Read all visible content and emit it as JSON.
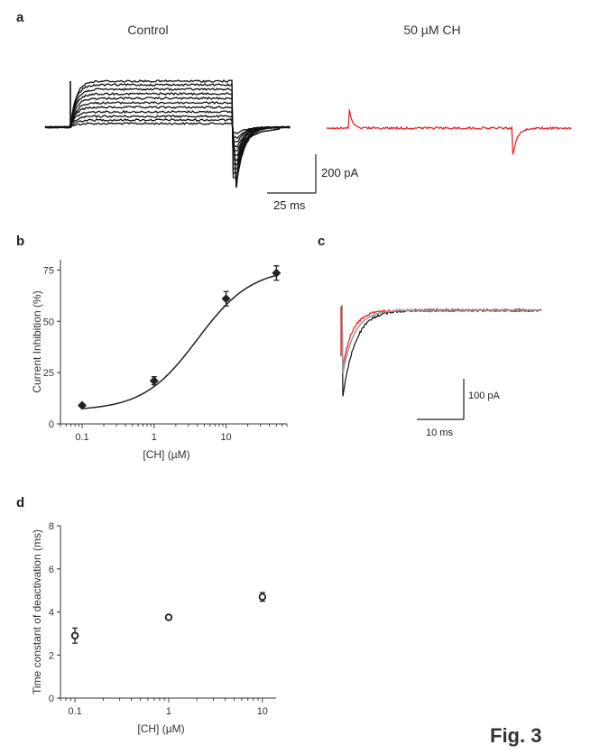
{
  "panels": {
    "a": {
      "label": "a",
      "control_title": "Control",
      "ch_title": "50 µM CH",
      "control_color": "#111111",
      "ch_color": "#e8262d",
      "scale_current": "200 pA",
      "scale_time": "25 ms"
    },
    "b": {
      "label": "b"
    },
    "c": {
      "label": "c",
      "scale_current": "100 pA",
      "scale_time": "10 ms",
      "colors": {
        "control": "#111111",
        "ch": "#e8262d",
        "fit": "#9a9a9a"
      }
    },
    "d": {
      "label": "d"
    }
  },
  "figure_label": "Fig. 3",
  "chart_data": [
    {
      "id": "b",
      "type": "scatter",
      "xscale": "log",
      "xlabel": "[CH] (µM)",
      "ylabel": "Current Inhibition (%)",
      "xlim": [
        0.05,
        70
      ],
      "ylim": [
        0,
        80
      ],
      "xticks": [
        0.1,
        1,
        10
      ],
      "xtick_labels": [
        "0.1",
        "1",
        "10"
      ],
      "yticks": [
        0,
        25,
        50,
        75
      ],
      "ytick_labels": [
        "0",
        "25",
        "50",
        "75"
      ],
      "marker": "filled-diamond",
      "x": [
        0.1,
        1,
        10,
        50
      ],
      "y": [
        9,
        21,
        61,
        73.5
      ],
      "yerr": [
        0,
        2,
        3.5,
        3.5
      ],
      "fit": {
        "model": "hill",
        "bottom": 6.5,
        "top": 76,
        "ic50": 4,
        "hill_n": 1.15
      }
    },
    {
      "id": "d",
      "type": "scatter",
      "xscale": "log",
      "xlabel": "[CH] (µM)",
      "ylabel": "Time constant of deactivation (ms)",
      "xlim": [
        0.07,
        14
      ],
      "ylim": [
        0,
        8
      ],
      "xticks": [
        0.1,
        1,
        10
      ],
      "xtick_labels": [
        "0.1",
        "1",
        "10"
      ],
      "yticks": [
        0,
        2,
        4,
        6,
        8
      ],
      "ytick_labels": [
        "0",
        "2",
        "4",
        "6",
        "8"
      ],
      "marker": "open-circle",
      "x": [
        0.1,
        1,
        10
      ],
      "y": [
        2.9,
        3.75,
        4.7
      ],
      "yerr": [
        0.35,
        0.1,
        0.2
      ]
    }
  ]
}
